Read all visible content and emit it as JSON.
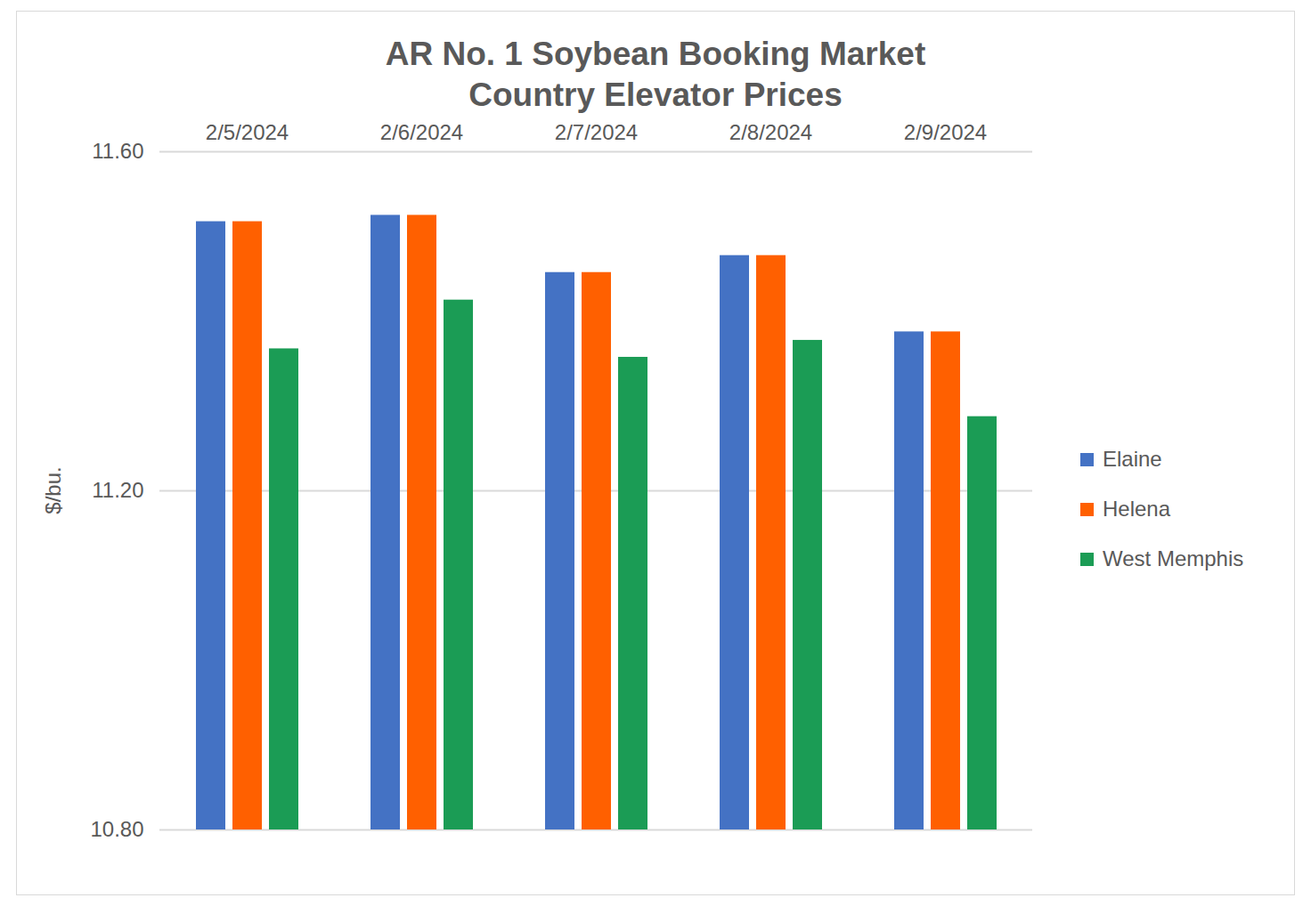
{
  "chart_data": {
    "type": "bar",
    "title": "AR No. 1 Soybean Booking Market\nCountry Elevator Prices",
    "y_label": "$/bu.",
    "categories": [
      "2/5/2024",
      "2/6/2024",
      "2/7/2024",
      "2/8/2024",
      "2/9/2024"
    ],
    "series": [
      {
        "name": "Elaine",
        "color": "#4472c4",
        "values": [
          11.5175,
          11.525,
          11.4575,
          11.4775,
          11.3875
        ]
      },
      {
        "name": "Helena",
        "color": "#ff6000",
        "values": [
          11.5175,
          11.525,
          11.4575,
          11.4775,
          11.3875
        ]
      },
      {
        "name": "West Memphis",
        "color": "#1b9c55",
        "values": [
          11.3675,
          11.425,
          11.3575,
          11.3775,
          11.2875
        ]
      }
    ],
    "ylim": [
      10.8,
      11.6
    ],
    "yticks": [
      {
        "value": 10.8,
        "label": "10.80"
      },
      {
        "value": 11.2,
        "label": "11.20"
      },
      {
        "value": 11.6,
        "label": "11.60"
      }
    ],
    "grid": true,
    "legend": "right"
  }
}
